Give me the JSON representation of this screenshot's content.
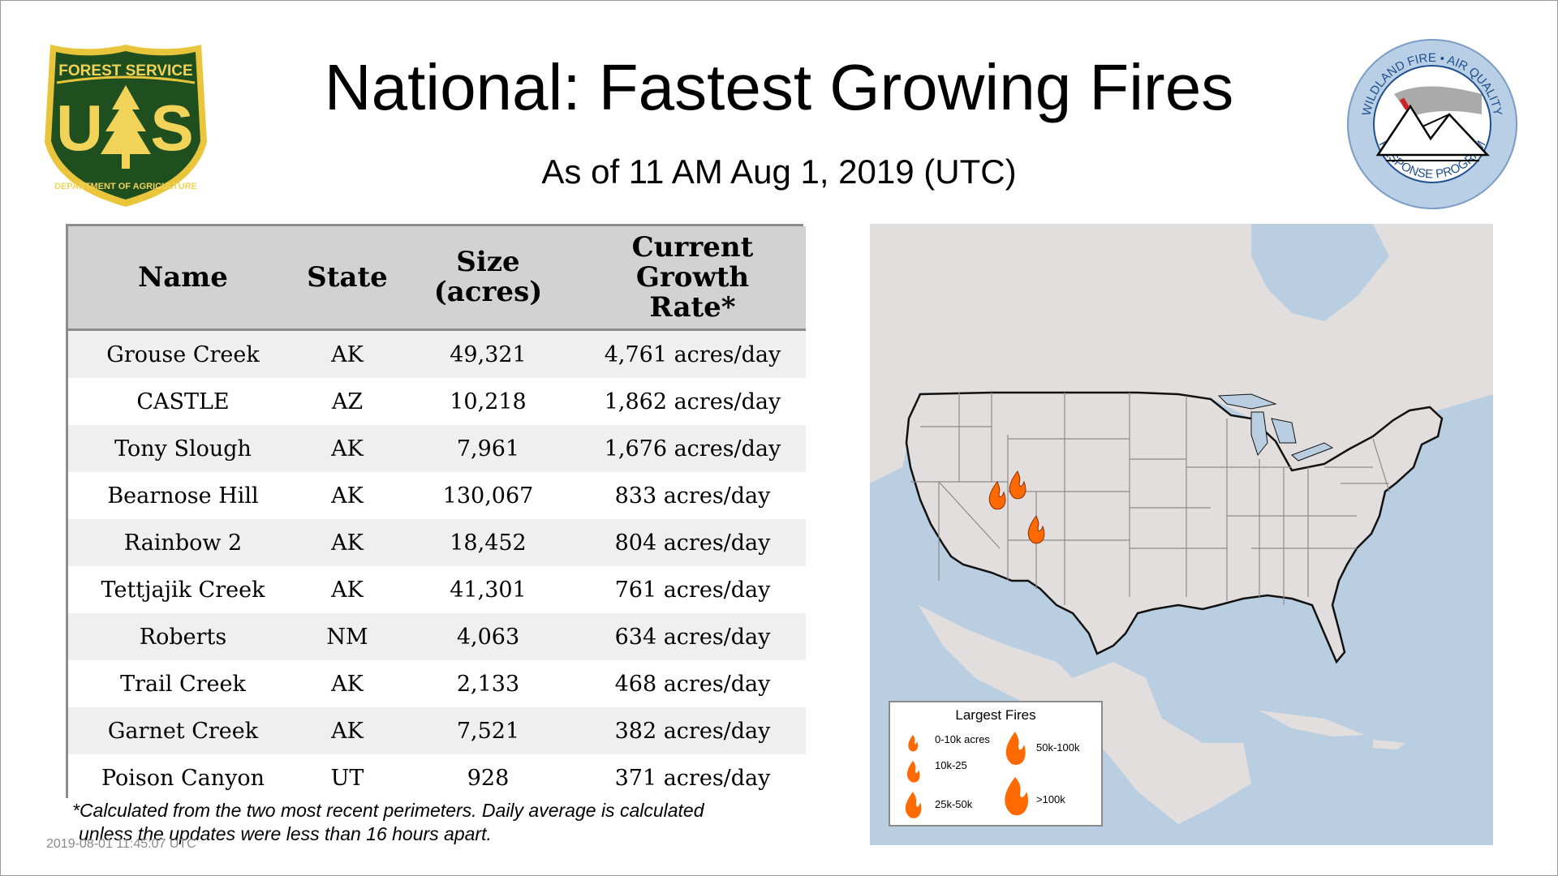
{
  "header": {
    "title": "National: Fastest Growing Fires",
    "subtitle": "As of 11 AM Aug  1, 2019 (UTC)"
  },
  "logos": {
    "left": {
      "icon": "forest-service-shield-logo",
      "text_top": "FOREST SERVICE",
      "letters_left": "U",
      "letters_right": "S",
      "text_bottom": "DEPARTMENT OF AGRICULTURE",
      "colors": {
        "shield": "#1f4e1f",
        "border": "#e8c53a",
        "text": "#f1d35a"
      }
    },
    "right": {
      "icon": "wildland-fire-air-quality-logo",
      "text_top": "WILDLAND FIRE • AIR QUALITY",
      "text_bottom": "RESPONSE PROGRAM",
      "colors": {
        "ring": "#b8cfe6",
        "text": "#1f4f8f"
      }
    }
  },
  "table": {
    "headers": {
      "name": "Name",
      "state": "State",
      "size_1": "Size",
      "size_2": "(acres)",
      "rate_1": "Current",
      "rate_2": "Growth",
      "rate_3": "Rate*"
    },
    "rows": [
      {
        "name": "Grouse Creek",
        "state": "AK",
        "size": "49,321",
        "rate": "4,761 acres/day"
      },
      {
        "name": "CASTLE",
        "state": "AZ",
        "size": "10,218",
        "rate": "1,862 acres/day"
      },
      {
        "name": "Tony Slough",
        "state": "AK",
        "size": "7,961",
        "rate": "1,676 acres/day"
      },
      {
        "name": "Bearnose Hill",
        "state": "AK",
        "size": "130,067",
        "rate": "833 acres/day"
      },
      {
        "name": "Rainbow 2",
        "state": "AK",
        "size": "18,452",
        "rate": "804 acres/day"
      },
      {
        "name": "Tettjajik Creek",
        "state": "AK",
        "size": "41,301",
        "rate": "761 acres/day"
      },
      {
        "name": "Roberts",
        "state": "NM",
        "size": "4,063",
        "rate": "634 acres/day"
      },
      {
        "name": "Trail Creek",
        "state": "AK",
        "size": "2,133",
        "rate": "468 acres/day"
      },
      {
        "name": "Garnet Creek",
        "state": "AK",
        "size": "7,521",
        "rate": "382 acres/day"
      },
      {
        "name": "Poison Canyon",
        "state": "UT",
        "size": "928",
        "rate": "371 acres/day"
      }
    ]
  },
  "footnote": {
    "line1": "*Calculated from the two most recent perimeters. Daily average is calculated",
    "line2": "unless the updates were less than 16 hours apart."
  },
  "timestamp": "2019-08-01 11:45:07 UTC",
  "map": {
    "colors": {
      "ocean": "#b9cfe1",
      "land": "#e3dede",
      "state_border": "#8a8a8a",
      "country_border": "#111111",
      "fire": "#ff6a00"
    },
    "fire_marker_icon": "fire-icon",
    "fire_count": 3
  },
  "legend": {
    "title": "Largest Fires",
    "items": [
      "0-10k acres",
      "10k-25",
      "25k-50k",
      "50k-100k",
      ">100k"
    ]
  }
}
